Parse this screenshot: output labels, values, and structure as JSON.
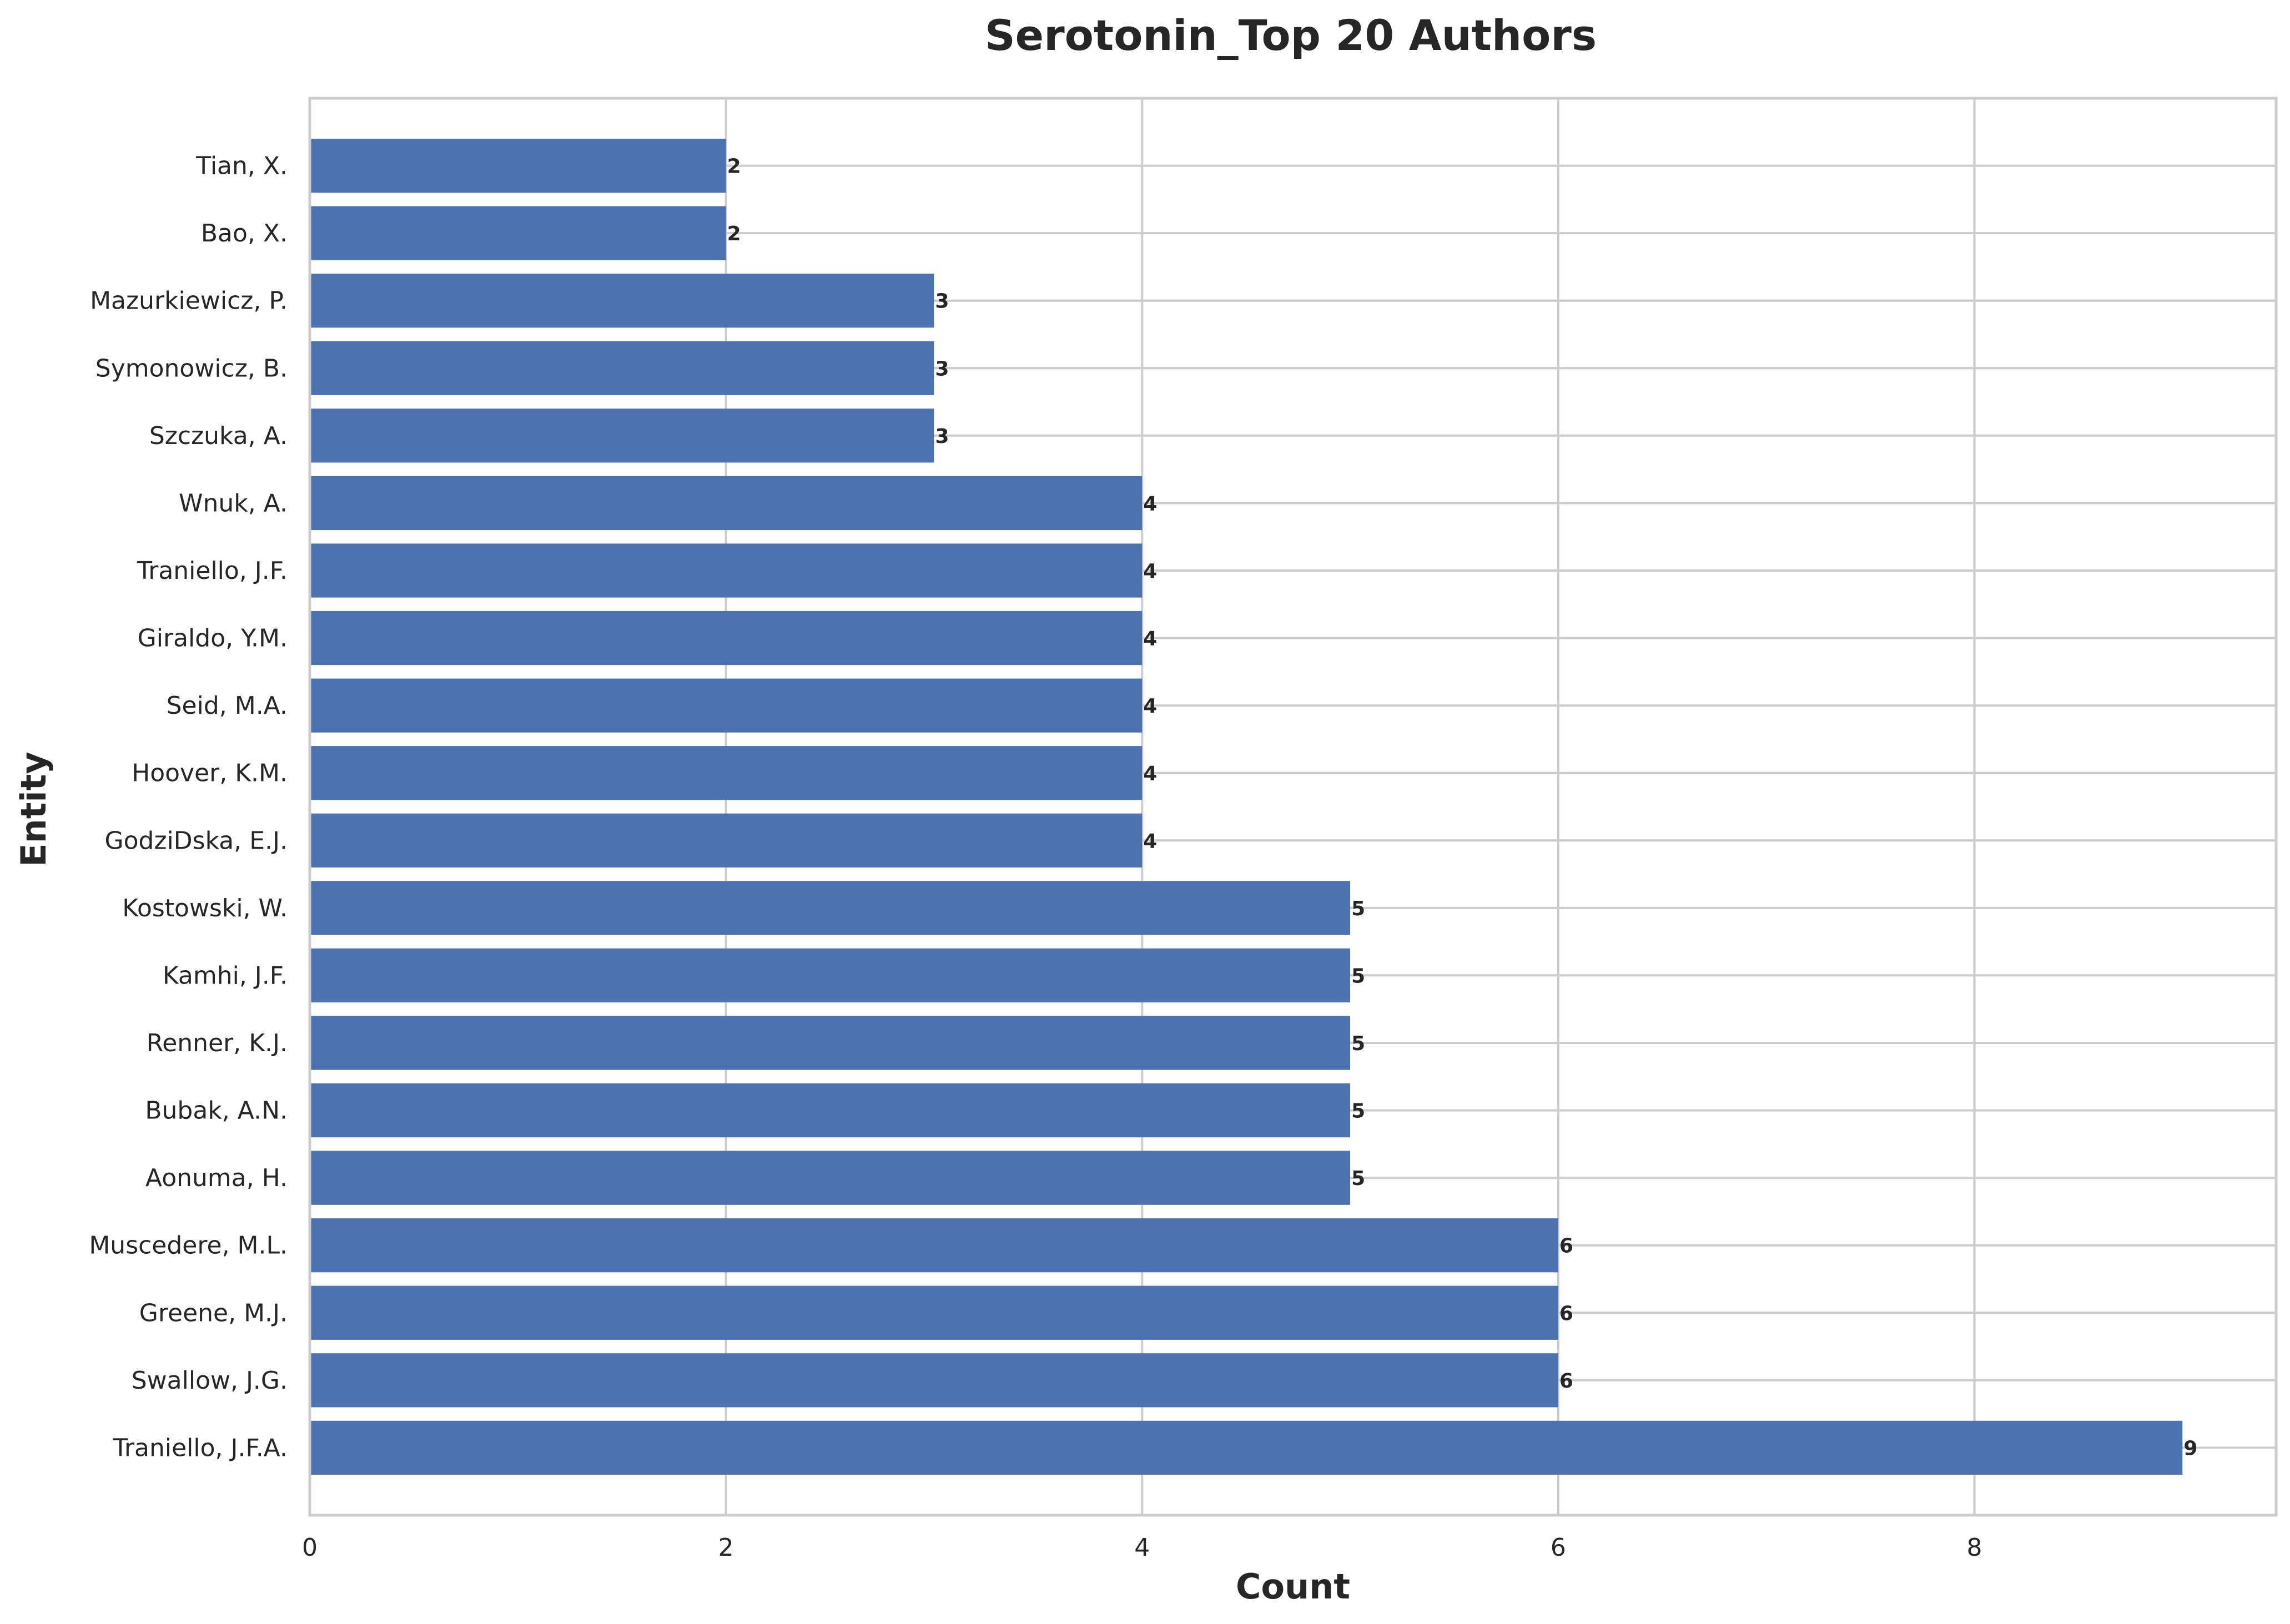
{
  "chart_data": {
    "type": "bar",
    "orientation": "horizontal",
    "title": "Serotonin_Top 20 Authors",
    "xlabel": "Count",
    "ylabel": "Entity",
    "categories": [
      "Tian, X.",
      "Bao, X.",
      "Mazurkiewicz, P.",
      "Symonowicz, B.",
      "Szczuka, A.",
      "Wnuk, A.",
      "Traniello, J.F.",
      "Giraldo, Y.M.",
      "Seid, M.A.",
      "Hoover, K.M.",
      "GodziDska, E.J.",
      "Kostowski, W.",
      "Kamhi, J.F.",
      "Renner, K.J.",
      "Bubak, A.N.",
      "Aonuma, H.",
      "Muscedere, M.L.",
      "Greene, M.J.",
      "Swallow, J.G.",
      "Traniello, J.F.A."
    ],
    "values": [
      2,
      2,
      3,
      3,
      3,
      4,
      4,
      4,
      4,
      4,
      4,
      5,
      5,
      5,
      5,
      5,
      6,
      6,
      6,
      9
    ],
    "xlim": [
      0,
      9.45
    ],
    "xticks": [
      0,
      2,
      4,
      6,
      8
    ],
    "grid": true,
    "legend": "none",
    "bar_color": "#4c72b0",
    "data_labels": true
  }
}
